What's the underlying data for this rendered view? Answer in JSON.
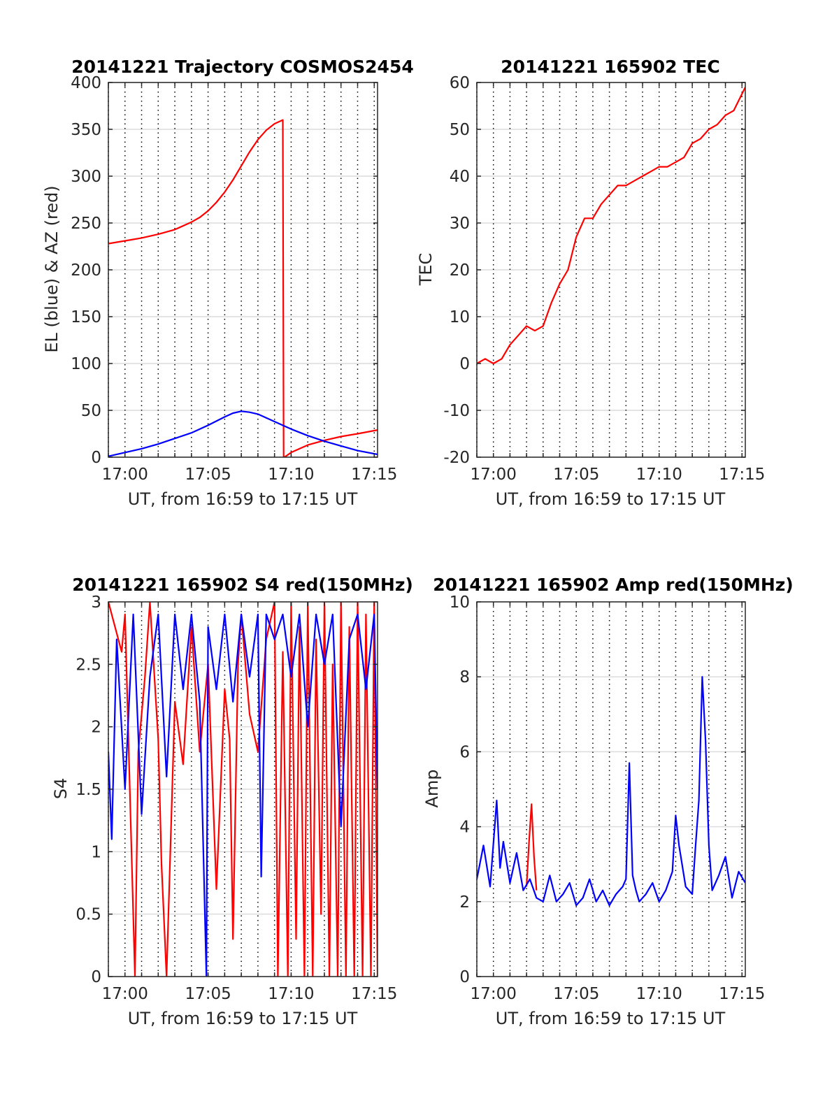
{
  "figure": {
    "background": "#ffffff",
    "colors": {
      "red": "#ff0000",
      "blue": "#0000ff",
      "grid_solid": "#dcdcdc",
      "grid_dotted": "#000000",
      "axis": "#262626"
    }
  },
  "chart_data": [
    {
      "type": "line",
      "title": "20141221 Trajectory COSMOS2454",
      "xlabel": "UT, from 16:59 to 17:15 UT",
      "ylabel": "EL (blue) & AZ (red)",
      "xlim": [
        -1,
        15.2
      ],
      "ylim": [
        0,
        400
      ],
      "x_unit": "minutes after 17:00 UT",
      "xticks": [
        0,
        5,
        10,
        15
      ],
      "xtick_labels": [
        "17:00",
        "17:05",
        "17:10",
        "17:15"
      ],
      "yticks": [
        0,
        50,
        100,
        150,
        200,
        250,
        300,
        350,
        400
      ],
      "ytick_labels": [
        "0",
        "50",
        "100",
        "150",
        "200",
        "250",
        "300",
        "350",
        "400"
      ],
      "grid": "horizontal solid at y ticks, vertical dotted every minute",
      "series": [
        {
          "color": "#ff0000",
          "x": [
            -1,
            0,
            1,
            2,
            3,
            4,
            4.5,
            5,
            5.5,
            6,
            6.5,
            7,
            7.5,
            8,
            8.5,
            9,
            9.5,
            9.55,
            9.6,
            10,
            11,
            12,
            13,
            14,
            15.2
          ],
          "y": [
            228,
            231,
            234,
            238,
            243,
            251,
            256,
            263,
            272,
            283,
            296,
            311,
            326,
            339,
            349,
            356,
            360,
            0,
            0,
            5,
            13,
            18,
            22,
            25,
            29
          ]
        },
        {
          "color": "#0000ff",
          "x": [
            -1,
            0,
            1,
            2,
            3,
            4,
            5,
            6,
            6.5,
            7,
            7.5,
            8,
            8.5,
            9,
            10,
            11,
            12,
            13,
            14,
            15.2
          ],
          "y": [
            1,
            5,
            9,
            14,
            20,
            26,
            34,
            43,
            47,
            49,
            48,
            46,
            42,
            38,
            30,
            23,
            17,
            12,
            7,
            3
          ]
        }
      ]
    },
    {
      "type": "line",
      "title": "20141221 165902 TEC",
      "xlabel": "UT, from 16:59 to 17:15 UT",
      "ylabel": "TEC",
      "xlim": [
        -1,
        15.2
      ],
      "ylim": [
        -20,
        60
      ],
      "x_unit": "minutes after 17:00 UT",
      "xticks": [
        0,
        5,
        10,
        15
      ],
      "xtick_labels": [
        "17:00",
        "17:05",
        "17:10",
        "17:15"
      ],
      "yticks": [
        -20,
        -10,
        0,
        10,
        20,
        30,
        40,
        50,
        60
      ],
      "ytick_labels": [
        "-20",
        "-10",
        "0",
        "10",
        "20",
        "30",
        "40",
        "50",
        "60"
      ],
      "grid": "horizontal solid at y ticks, vertical dotted every minute",
      "series": [
        {
          "color": "#ff0000",
          "x": [
            -1,
            -0.5,
            0,
            0.5,
            1,
            1.5,
            2,
            2.5,
            3,
            3.5,
            4,
            4.5,
            5,
            5.5,
            6,
            6.5,
            7,
            7.5,
            8,
            8.5,
            9,
            9.5,
            10,
            10.5,
            11,
            11.5,
            12,
            12.5,
            13,
            13.5,
            14,
            14.5,
            15.2
          ],
          "y": [
            0,
            1,
            0,
            1,
            4,
            6,
            8,
            7,
            8,
            13,
            17,
            20,
            27,
            31,
            31,
            34,
            36,
            38,
            38,
            39,
            40,
            41,
            42,
            42,
            43,
            44,
            47,
            48,
            50,
            51,
            53,
            54,
            59
          ]
        }
      ]
    },
    {
      "type": "line",
      "title": "20141221 165902 S4 red(150MHz)",
      "xlabel": "UT, from 16:59 to 17:15 UT",
      "ylabel": "S4",
      "xlim": [
        -1,
        15.2
      ],
      "ylim": [
        0,
        3
      ],
      "x_unit": "minutes after 17:00 UT",
      "xticks": [
        0,
        5,
        10,
        15
      ],
      "xtick_labels": [
        "17:00",
        "17:05",
        "17:10",
        "17:15"
      ],
      "yticks": [
        0,
        0.5,
        1,
        1.5,
        2,
        2.5,
        3
      ],
      "ytick_labels": [
        "0",
        "0.5",
        "1",
        "1.5",
        "2",
        "2.5",
        "3"
      ],
      "grid": "horizontal solid at y ticks, vertical dotted every minute",
      "series": [
        {
          "color": "#ff0000",
          "x": [
            -1,
            -0.2,
            0,
            0.6,
            0.8,
            1.2,
            1.5,
            2.0,
            2.2,
            2.5,
            3.0,
            3.5,
            4.0,
            4.5,
            5.0,
            5.5,
            6.0,
            6.3,
            6.5,
            6.8,
            7.0,
            7.5,
            8.0,
            8.5,
            9.0,
            9.2,
            9.5,
            9.8,
            10.0,
            10.3,
            10.5,
            10.8,
            11.0,
            11.3,
            11.5,
            11.8,
            12.0,
            12.3,
            12.5,
            12.8,
            13.0,
            13.3,
            13.5,
            13.8,
            14.0,
            14.3,
            14.5,
            14.8,
            15.0,
            15.2
          ],
          "y": [
            3.0,
            2.6,
            2.9,
            0.0,
            1.8,
            2.4,
            3.0,
            1.9,
            0.9,
            0.0,
            2.2,
            1.7,
            2.8,
            1.8,
            2.5,
            0.7,
            2.3,
            1.9,
            0.3,
            2.5,
            2.9,
            2.1,
            1.8,
            2.7,
            3.0,
            0.0,
            2.6,
            0.0,
            3.0,
            0.3,
            2.8,
            0.0,
            3.0,
            0.0,
            2.7,
            0.5,
            3.0,
            0.0,
            2.5,
            0.0,
            3.0,
            0.0,
            2.8,
            0.0,
            3.0,
            0.0,
            2.9,
            0.0,
            3.0,
            0.0
          ]
        },
        {
          "color": "#0000ff",
          "x": [
            -1,
            -0.8,
            -0.5,
            0,
            0.5,
            1,
            1.5,
            2,
            2.5,
            3,
            3.5,
            4,
            4.5,
            4.9,
            5,
            5.5,
            6,
            6.5,
            7,
            7.5,
            8,
            8.2,
            8.5,
            9,
            9.5,
            10,
            10.5,
            11,
            11.5,
            12,
            12.5,
            13,
            13.5,
            14,
            14.5,
            15,
            15.2
          ],
          "y": [
            1.8,
            1.1,
            2.7,
            1.5,
            2.9,
            1.3,
            2.4,
            2.9,
            1.6,
            2.9,
            2.3,
            2.9,
            2.2,
            0.0,
            2.8,
            2.3,
            2.9,
            2.2,
            2.9,
            2.4,
            2.9,
            0.8,
            2.9,
            2.7,
            2.9,
            2.4,
            2.9,
            2.0,
            2.9,
            2.5,
            2.9,
            1.2,
            2.7,
            2.9,
            2.3,
            2.9,
            1.5
          ]
        }
      ]
    },
    {
      "type": "line",
      "title": "20141221 165902 Amp red(150MHz)",
      "xlabel": "UT, from 16:59 to 17:15 UT",
      "ylabel": "Amp",
      "xlim": [
        -1,
        15.2
      ],
      "ylim": [
        0,
        10
      ],
      "x_unit": "minutes after 17:00 UT",
      "xticks": [
        0,
        5,
        10,
        15
      ],
      "xtick_labels": [
        "17:00",
        "17:05",
        "17:10",
        "17:15"
      ],
      "yticks": [
        0,
        2,
        4,
        6,
        8,
        10
      ],
      "ytick_labels": [
        "0",
        "2",
        "4",
        "6",
        "8",
        "10"
      ],
      "grid": "horizontal solid at y ticks, vertical dotted every minute",
      "series": [
        {
          "color": "#ff0000",
          "x": [
            2.0,
            2.15,
            2.3,
            2.45,
            2.6
          ],
          "y": [
            2.4,
            3.6,
            4.6,
            3.2,
            2.3
          ]
        },
        {
          "color": "#0000ff",
          "x": [
            -1,
            -0.6,
            -0.2,
            0.2,
            0.4,
            0.6,
            1.0,
            1.4,
            1.8,
            2.2,
            2.6,
            3.0,
            3.4,
            3.8,
            4.2,
            4.6,
            5.0,
            5.4,
            5.8,
            6.2,
            6.6,
            7.0,
            7.4,
            7.8,
            8.0,
            8.2,
            8.4,
            8.6,
            8.8,
            9.2,
            9.6,
            10.0,
            10.4,
            10.8,
            11.0,
            11.2,
            11.6,
            12.0,
            12.2,
            12.4,
            12.6,
            12.8,
            13.0,
            13.2,
            13.6,
            14.0,
            14.4,
            14.8,
            15.2
          ],
          "y": [
            2.6,
            3.5,
            2.4,
            4.7,
            2.9,
            3.6,
            2.5,
            3.3,
            2.3,
            2.6,
            2.1,
            2.0,
            2.7,
            2.0,
            2.2,
            2.5,
            1.9,
            2.1,
            2.6,
            2.0,
            2.3,
            1.9,
            2.2,
            2.4,
            2.6,
            5.7,
            2.7,
            2.3,
            2.0,
            2.2,
            2.5,
            2.0,
            2.3,
            2.8,
            4.3,
            3.5,
            2.4,
            2.2,
            3.5,
            4.7,
            8.0,
            6.3,
            3.5,
            2.3,
            2.7,
            3.2,
            2.1,
            2.8,
            2.5
          ]
        }
      ]
    }
  ]
}
